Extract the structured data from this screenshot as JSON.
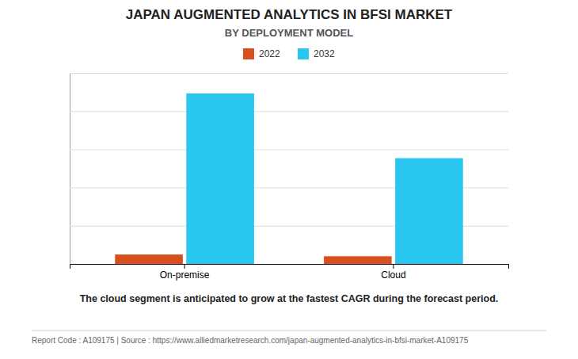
{
  "chart_data": {
    "type": "bar",
    "title": "JAPAN AUGMENTED ANALYTICS IN BFSI MARKET",
    "subtitle": "BY DEPLOYMENT MODEL",
    "categories": [
      "On-premise",
      "Cloud"
    ],
    "series": [
      {
        "name": "2022",
        "color": "#D94F1E",
        "values": [
          0.055,
          0.045
        ]
      },
      {
        "name": "2032",
        "color": "#29C6F0",
        "values": [
          1.0,
          0.62
        ]
      }
    ],
    "ylim": [
      0,
      1.12
    ],
    "yticks": [
      0,
      0.224,
      0.448,
      0.672,
      0.896,
      1.12
    ],
    "grid": true,
    "legend": "top",
    "tick_labels": "x",
    "annotations": [
      "The cloud segment is anticipated to grow at the fastest CAGR during the forecast period.",
      "Report Code : A109175  |  Source : https://www.alliedmarketresearch.com/japan-augmented-analytics-in-bfsi-market-A109175"
    ]
  }
}
